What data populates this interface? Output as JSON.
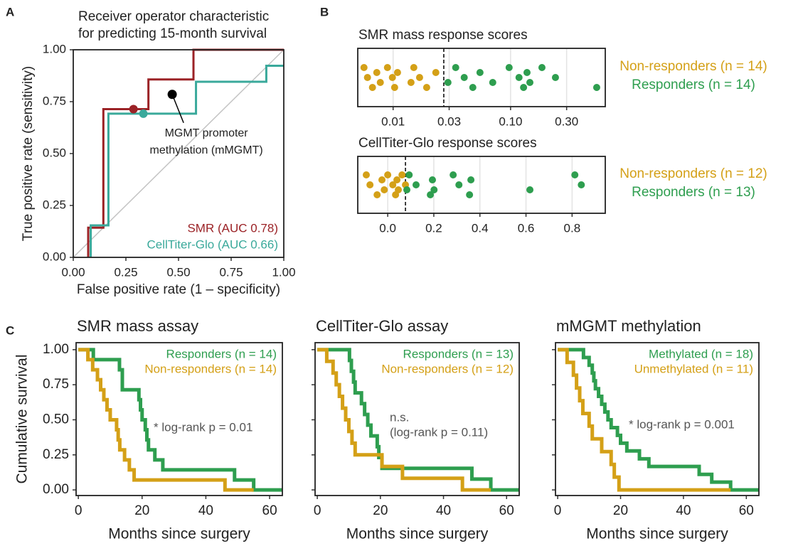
{
  "chart_data": [
    {
      "type": "roc",
      "panel": "A",
      "title": [
        "Receiver operator characteristic",
        "for predicting 15-month survival"
      ],
      "x_label": "False positive rate (1 – specificity)",
      "y_label": "True positive rate (sensitivity)",
      "xlim": [
        0,
        1
      ],
      "ylim": [
        0,
        1
      ],
      "xticks": [
        {
          "value": 0,
          "label": "0.00"
        },
        {
          "value": 0.25,
          "label": "0.25"
        },
        {
          "value": 0.5,
          "label": "0.50"
        },
        {
          "value": 0.75,
          "label": "0.75"
        },
        {
          "value": 1,
          "label": "1.00"
        }
      ],
      "yticks": [
        {
          "value": 0,
          "label": "0.00"
        },
        {
          "value": 0.25,
          "label": "0.25"
        },
        {
          "value": 0.5,
          "label": "0.50"
        },
        {
          "value": 0.75,
          "label": "0.75"
        },
        {
          "value": 1,
          "label": "1.00"
        }
      ],
      "diagonal": true,
      "series": [
        {
          "name": "SMR (AUC 0.78)",
          "color": "#9b2226",
          "x": [
            0.071,
            0.071,
            0.143,
            0.143,
            0.357,
            0.357,
            0.571,
            0.571,
            1.0
          ],
          "values": [
            0,
            0.143,
            0.143,
            0.714,
            0.714,
            0.857,
            0.857,
            1.0,
            1.0
          ],
          "point": [
            0.286,
            0.714
          ]
        },
        {
          "name": "CellTiter-Glo (AUC 0.66)",
          "color": "#3aa99b",
          "x": [
            0.083,
            0.083,
            0.167,
            0.167,
            0.583,
            0.583,
            0.917,
            0.917,
            1.0
          ],
          "values": [
            0,
            0.154,
            0.154,
            0.692,
            0.692,
            0.846,
            0.846,
            0.923,
            0.923
          ],
          "point": [
            0.333,
            0.692
          ]
        }
      ],
      "annotation": {
        "text": [
          "MGMT promoter",
          "methylation (mMGMT)"
        ],
        "x": 0.47,
        "y": 0.785,
        "color": "#000000"
      }
    },
    {
      "type": "strip",
      "panel": "B",
      "title": "SMR mass response scores",
      "xscale": "log",
      "xlim": [
        0.005,
        0.64
      ],
      "xticks": [
        0.01,
        0.03,
        {
          "value": 0.1,
          "label": "0.10"
        },
        {
          "value": 0.3,
          "label": "0.30"
        }
      ],
      "grid": true,
      "threshold": 0.027,
      "series": [
        {
          "name": "Non-responders (n = 14)",
          "color": "#d4a017",
          "values": [
            0.00565,
            0.00605,
            0.00667,
            0.00726,
            0.00778,
            0.00895,
            0.00986,
            0.0103,
            0.0109,
            0.0142,
            0.015,
            0.0168,
            0.0193,
            0.0231
          ]
        },
        {
          "name": "Responders (n = 14)",
          "color": "#2e9e4f",
          "values": [
            0.0293,
            0.0341,
            0.0403,
            0.0477,
            0.0549,
            0.0705,
            0.0972,
            0.118,
            0.129,
            0.138,
            0.146,
            0.185,
            0.241,
            0.541
          ]
        }
      ]
    },
    {
      "type": "strip",
      "title": "CellTiter-Glo response scores",
      "xscale": "linear",
      "xlim": [
        -0.13,
        0.944
      ],
      "xticks": [
        {
          "value": 0,
          "label": "0.0"
        },
        0.2,
        0.4,
        0.6,
        0.8
      ],
      "grid": true,
      "threshold": 0.077,
      "series": [
        {
          "name": "Non-responders (n = 12)",
          "color": "#d4a017",
          "values": [
            -0.093,
            -0.077,
            -0.046,
            -0.025,
            -0.015,
            0,
            0.022,
            0.034,
            0.04,
            0.046,
            0.062,
            0.077
          ]
        },
        {
          "name": "Responders (n = 13)",
          "color": "#2e9e4f",
          "values": [
            0.083,
            0.093,
            0.123,
            0.185,
            0.194,
            0.201,
            0.284,
            0.309,
            0.355,
            0.361,
            0.617,
            0.812,
            0.84
          ]
        }
      ]
    },
    {
      "type": "km",
      "panel": "C",
      "title": "SMR mass assay",
      "x_label": "Months since surgery",
      "y_label": "Cumulative survival",
      "xlim": [
        -0.7,
        64
      ],
      "ylim": [
        -0.04,
        1.05
      ],
      "xticks": [
        0,
        20,
        40,
        60
      ],
      "yticks": [
        {
          "value": 0,
          "label": "0.00"
        },
        {
          "value": 0.25,
          "label": "0.25"
        },
        {
          "value": 0.5,
          "label": "0.50"
        },
        {
          "value": 0.75,
          "label": "0.75"
        },
        {
          "value": 1,
          "label": "1.00"
        }
      ],
      "ytick_labels": true,
      "series": [
        {
          "name": "Responders (n = 14)",
          "color": "#2e9e4f",
          "x": [
            0,
            4.7,
            12.9,
            13.8,
            19,
            19.5,
            20,
            21,
            21.5,
            22,
            24,
            26.5,
            49,
            55,
            64
          ],
          "values": [
            1,
            0.929,
            0.857,
            0.714,
            0.643,
            0.571,
            0.5,
            0.429,
            0.357,
            0.286,
            0.214,
            0.143,
            0.071,
            0,
            0
          ]
        },
        {
          "name": "Non-responders (n = 14)",
          "color": "#d4a017",
          "x": [
            0,
            3,
            4.5,
            6,
            7,
            8,
            9,
            10,
            12,
            12.5,
            13,
            14.5,
            16,
            17.5,
            46,
            55
          ],
          "values": [
            1,
            0.929,
            0.857,
            0.786,
            0.714,
            0.643,
            0.571,
            0.5,
            0.429,
            0.357,
            0.286,
            0.214,
            0.143,
            0.071,
            0,
            0
          ]
        }
      ],
      "annotation": [
        "* log-rank p = 0.01"
      ]
    },
    {
      "type": "km",
      "title": "CellTiter-Glo assay",
      "x_label": "Months since surgery",
      "xlim": [
        -0.7,
        64
      ],
      "ylim": [
        -0.04,
        1.05
      ],
      "xticks": [
        0,
        20,
        40,
        60
      ],
      "yticks": [
        0,
        0.25,
        0.5,
        0.75,
        1
      ],
      "ytick_labels": false,
      "series": [
        {
          "name": "Responders (n = 13)",
          "color": "#2e9e4f",
          "x": [
            0,
            10.2,
            10.8,
            11.5,
            12,
            14,
            15,
            16,
            17,
            19,
            19.5,
            20.5,
            49,
            55,
            64
          ],
          "values": [
            1,
            0.923,
            0.846,
            0.769,
            0.692,
            0.615,
            0.538,
            0.462,
            0.385,
            0.308,
            0.231,
            0.154,
            0.077,
            0,
            0
          ]
        },
        {
          "name": "Non-responders (n = 12)",
          "color": "#d4a017",
          "x": [
            0,
            3,
            5,
            6,
            7,
            8,
            9,
            10,
            11,
            12,
            20.5,
            27,
            46,
            55
          ],
          "values": [
            1,
            0.917,
            0.833,
            0.75,
            0.667,
            0.583,
            0.5,
            0.417,
            0.333,
            0.25,
            0.167,
            0.083,
            0,
            0
          ]
        }
      ],
      "annotation": [
        "n.s.",
        "(log-rank p = 0.11)"
      ]
    },
    {
      "type": "km",
      "title": "mMGMT methylation",
      "x_label": "Months since surgery",
      "xlim": [
        -0.7,
        64
      ],
      "ylim": [
        -0.04,
        1.05
      ],
      "xticks": [
        0,
        20,
        40,
        60
      ],
      "yticks": [
        0,
        0.25,
        0.5,
        0.75,
        1
      ],
      "ytick_labels": false,
      "series": [
        {
          "name": "Methylated (n = 18)",
          "color": "#2e9e4f",
          "x": [
            0,
            8.2,
            10,
            11,
            11.5,
            12,
            13,
            14,
            15,
            16,
            17,
            19,
            20,
            22,
            26,
            29,
            45,
            49,
            55,
            64
          ],
          "values": [
            1,
            0.944,
            0.889,
            0.833,
            0.778,
            0.722,
            0.667,
            0.611,
            0.556,
            0.5,
            0.444,
            0.389,
            0.333,
            0.278,
            0.222,
            0.167,
            0.111,
            0.056,
            0,
            0
          ]
        },
        {
          "name": "Unmethylated (n = 11)",
          "color": "#d4a017",
          "x": [
            0,
            3,
            5,
            6,
            7,
            8,
            10,
            11,
            14,
            17,
            18,
            19.5,
            55
          ],
          "values": [
            1,
            0.909,
            0.818,
            0.727,
            0.636,
            0.545,
            0.455,
            0.364,
            0.273,
            0.182,
            0.091,
            0,
            0
          ]
        }
      ],
      "annotation": [
        "* log-rank p = 0.001"
      ]
    }
  ]
}
